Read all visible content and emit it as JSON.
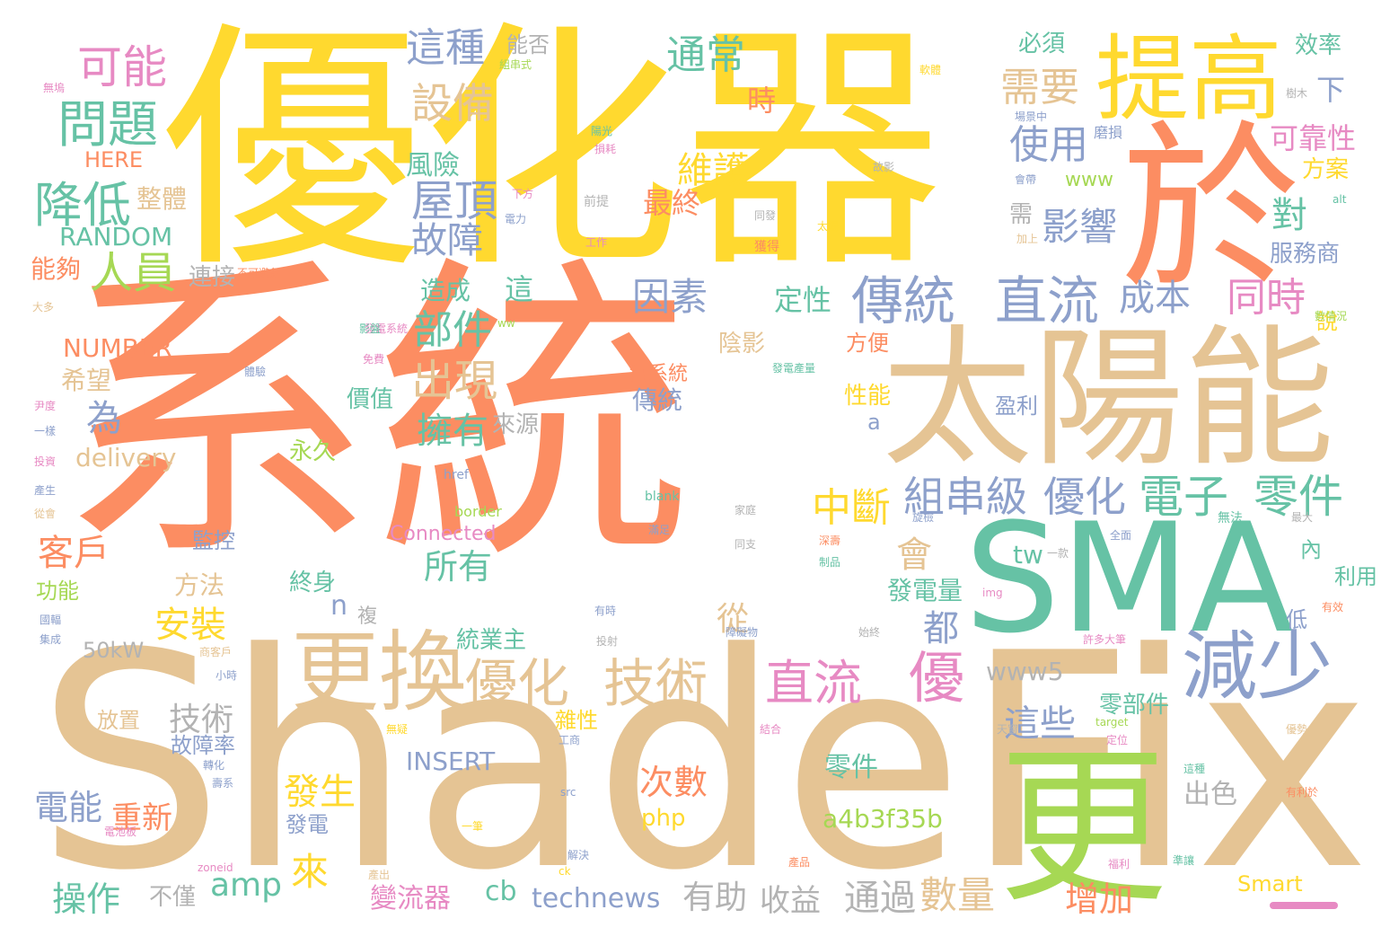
{
  "palette": {
    "orange": "#fc8d62",
    "yellow": "#ffd92f",
    "tan": "#e5c494",
    "teal": "#66c2a5",
    "blue": "#8da0cb",
    "pink": "#e78ac3",
    "green": "#a6d854",
    "gray": "#b3b3b3"
  },
  "words": [
    {
      "text": "系統",
      "color": "#fc8d62"
    },
    {
      "text": "ShadeFix",
      "color": "#e5c494"
    },
    {
      "text": "優化器",
      "color": "#ffd92f"
    },
    {
      "text": "太陽能",
      "color": "#e5c494"
    },
    {
      "text": "SMA",
      "color": "#66c2a5"
    },
    {
      "text": "提高",
      "color": "#ffd92f"
    },
    {
      "text": "於",
      "color": "#fc8d62"
    },
    {
      "text": "更",
      "color": "#a6d854"
    },
    {
      "text": "更換",
      "color": "#e5c494"
    },
    {
      "text": "減少",
      "color": "#8da0cb"
    },
    {
      "text": "傳統",
      "color": "#8da0cb"
    },
    {
      "text": "直流",
      "color": "#8da0cb"
    },
    {
      "text": "優化",
      "color": "#e5c494"
    },
    {
      "text": "技術",
      "color": "#e5c494"
    },
    {
      "text": "直流",
      "color": "#e78ac3"
    },
    {
      "text": "優",
      "color": "#e78ac3"
    },
    {
      "text": "組串級",
      "color": "#8da0cb"
    },
    {
      "text": "優化",
      "color": "#8da0cb"
    },
    {
      "text": "電子",
      "color": "#66c2a5"
    },
    {
      "text": "零件",
      "color": "#66c2a5"
    },
    {
      "text": "問題",
      "color": "#66c2a5"
    },
    {
      "text": "可能",
      "color": "#e78ac3"
    },
    {
      "text": "降低",
      "color": "#66c2a5"
    },
    {
      "text": "人員",
      "color": "#a6d854"
    },
    {
      "text": "設備",
      "color": "#e5c494"
    },
    {
      "text": "這種",
      "color": "#8da0cb"
    },
    {
      "text": "通常",
      "color": "#66c2a5"
    },
    {
      "text": "需要",
      "color": "#e5c494"
    },
    {
      "text": "使用",
      "color": "#8da0cb"
    },
    {
      "text": "維護",
      "color": "#ffd92f"
    },
    {
      "text": "屋頂",
      "color": "#8da0cb"
    },
    {
      "text": "故障",
      "color": "#8da0cb"
    },
    {
      "text": "影響",
      "color": "#8da0cb"
    },
    {
      "text": "成本",
      "color": "#8da0cb"
    },
    {
      "text": "同時",
      "color": "#e78ac3"
    },
    {
      "text": "因素",
      "color": "#8da0cb"
    },
    {
      "text": "部件",
      "color": "#66c2a5"
    },
    {
      "text": "出現",
      "color": "#e5c494"
    },
    {
      "text": "擁有",
      "color": "#66c2a5"
    },
    {
      "text": "中斷",
      "color": "#ffd92f"
    },
    {
      "text": "為",
      "color": "#8da0cb"
    },
    {
      "text": "客戶",
      "color": "#fc8d62"
    },
    {
      "text": "安裝",
      "color": "#ffd92f"
    },
    {
      "text": "技術",
      "color": "#b3b3b3"
    },
    {
      "text": "會",
      "color": "#e5c494"
    },
    {
      "text": "都",
      "color": "#8da0cb"
    },
    {
      "text": "從",
      "color": "#e5c494"
    },
    {
      "text": "來",
      "color": "#ffd92f"
    },
    {
      "text": "發生",
      "color": "#ffd92f"
    },
    {
      "text": "這些",
      "color": "#8da0cb"
    },
    {
      "text": "所有",
      "color": "#66c2a5"
    },
    {
      "text": "電能",
      "color": "#8da0cb"
    },
    {
      "text": "重新",
      "color": "#fc8d62"
    },
    {
      "text": "操作",
      "color": "#66c2a5"
    },
    {
      "text": "amp",
      "color": "#66c2a5"
    },
    {
      "text": "有助",
      "color": "#b3b3b3"
    },
    {
      "text": "收益",
      "color": "#b3b3b3"
    },
    {
      "text": "通過",
      "color": "#b3b3b3"
    },
    {
      "text": "數量",
      "color": "#e5c494"
    },
    {
      "text": "增加",
      "color": "#fc8d62"
    },
    {
      "text": "次數",
      "color": "#fc8d62"
    },
    {
      "text": "technews",
      "color": "#8da0cb"
    },
    {
      "text": "變流器",
      "color": "#e78ac3"
    },
    {
      "text": "零件",
      "color": "#66c2a5"
    },
    {
      "text": "INSERT",
      "color": "#8da0cb"
    },
    {
      "text": "a4b3f35b",
      "color": "#a6d854"
    },
    {
      "text": "出色",
      "color": "#b3b3b3"
    },
    {
      "text": "delivery",
      "color": "#e5c494"
    },
    {
      "text": "NUMBER",
      "color": "#fc8d62"
    },
    {
      "text": "RANDOM",
      "color": "#66c2a5"
    },
    {
      "text": "HERE",
      "color": "#fc8d62"
    },
    {
      "text": "www5",
      "color": "#b3b3b3"
    },
    {
      "text": "50kW",
      "color": "#b3b3b3"
    },
    {
      "text": "Connected",
      "color": "#e78ac3"
    },
    {
      "text": "Smart",
      "color": "#ffd92f"
    },
    {
      "text": "www",
      "color": "#a6d854"
    },
    {
      "text": "php",
      "color": "#ffd92f"
    },
    {
      "text": "cb",
      "color": "#66c2a5"
    },
    {
      "text": "tw",
      "color": "#66c2a5"
    },
    {
      "text": "n",
      "color": "#8da0cb"
    },
    {
      "text": "a",
      "color": "#8da0cb"
    },
    {
      "text": "風險",
      "color": "#66c2a5"
    },
    {
      "text": "整體",
      "color": "#e5c494"
    },
    {
      "text": "能夠",
      "color": "#fc8d62"
    },
    {
      "text": "連接",
      "color": "#b3b3b3"
    },
    {
      "text": "造成",
      "color": "#66c2a5"
    },
    {
      "text": "這",
      "color": "#66c2a5"
    },
    {
      "text": "最終",
      "color": "#fc8d62"
    },
    {
      "text": "定性",
      "color": "#66c2a5"
    },
    {
      "text": "時",
      "color": "#fc8d62"
    },
    {
      "text": "對",
      "color": "#66c2a5"
    },
    {
      "text": "需",
      "color": "#b3b3b3"
    },
    {
      "text": "必須",
      "color": "#66c2a5"
    },
    {
      "text": "能否",
      "color": "#b3b3b3"
    },
    {
      "text": "效率",
      "color": "#66c2a5"
    },
    {
      "text": "下",
      "color": "#8da0cb"
    },
    {
      "text": "可靠性",
      "color": "#e78ac3"
    },
    {
      "text": "方案",
      "color": "#ffd92f"
    },
    {
      "text": "服務商",
      "color": "#8da0cb"
    },
    {
      "text": "說",
      "color": "#ffd92f"
    },
    {
      "text": "希望",
      "color": "#e5c494"
    },
    {
      "text": "價值",
      "color": "#66c2a5"
    },
    {
      "text": "傳統",
      "color": "#8da0cb"
    },
    {
      "text": "當系統",
      "color": "#fc8d62"
    },
    {
      "text": "方便",
      "color": "#fc8d62"
    },
    {
      "text": "性能",
      "color": "#ffd92f"
    },
    {
      "text": "陰影",
      "color": "#e5c494"
    },
    {
      "text": "來源",
      "color": "#b3b3b3"
    },
    {
      "text": "盈利",
      "color": "#8da0cb"
    },
    {
      "text": "永久",
      "color": "#a6d854"
    },
    {
      "text": "終身",
      "color": "#66c2a5"
    },
    {
      "text": "方法",
      "color": "#e5c494"
    },
    {
      "text": "監控",
      "color": "#8da0cb"
    },
    {
      "text": "功能",
      "color": "#a6d854"
    },
    {
      "text": "故障率",
      "color": "#8da0cb"
    },
    {
      "text": "放置",
      "color": "#e5c494"
    },
    {
      "text": "統業主",
      "color": "#66c2a5"
    },
    {
      "text": "雜性",
      "color": "#ffd92f"
    },
    {
      "text": "發電量",
      "color": "#66c2a5"
    },
    {
      "text": "零部件",
      "color": "#66c2a5"
    },
    {
      "text": "發電",
      "color": "#8da0cb"
    },
    {
      "text": "內",
      "color": "#66c2a5"
    },
    {
      "text": "利用",
      "color": "#66c2a5"
    },
    {
      "text": "低",
      "color": "#8da0cb"
    },
    {
      "text": "複",
      "color": "#b3b3b3"
    },
    {
      "text": "不僅",
      "color": "#b3b3b3"
    },
    {
      "text": "無塢",
      "color": "#e78ac3"
    },
    {
      "text": "組串式",
      "color": "#a6d854"
    },
    {
      "text": "軟體",
      "color": "#ffd92f"
    },
    {
      "text": "樹木",
      "color": "#b3b3b3"
    },
    {
      "text": "場景中",
      "color": "#8da0cb"
    },
    {
      "text": "陽光",
      "color": "#66c2a5"
    },
    {
      "text": "損耗",
      "color": "#e78ac3"
    },
    {
      "text": "磨損",
      "color": "#8da0cb"
    },
    {
      "text": "故影",
      "color": "#b3b3b3"
    },
    {
      "text": "會帶",
      "color": "#8da0cb"
    },
    {
      "text": "alt",
      "color": "#66c2a5"
    },
    {
      "text": "下方",
      "color": "#e78ac3"
    },
    {
      "text": "電力",
      "color": "#8da0cb"
    },
    {
      "text": "前提",
      "color": "#b3b3b3"
    },
    {
      "text": "同發",
      "color": "#b3b3b3"
    },
    {
      "text": "太陽",
      "color": "#ffd92f"
    },
    {
      "text": "獲得",
      "color": "#fc8d62"
    },
    {
      "text": "工作",
      "color": "#e78ac3"
    },
    {
      "text": "加上",
      "color": "#e5c494"
    },
    {
      "text": "不可避免",
      "color": "#fc8d62"
    },
    {
      "text": "數情況",
      "color": "#a6d854"
    },
    {
      "text": "大多",
      "color": "#e5c494"
    },
    {
      "text": "ww",
      "color": "#a6d854"
    },
    {
      "text": "發電系統",
      "color": "#e78ac3"
    },
    {
      "text": "發電產量",
      "color": "#66c2a5"
    },
    {
      "text": "免費",
      "color": "#e78ac3"
    },
    {
      "text": "體驗",
      "color": "#8da0cb"
    },
    {
      "text": "影盤",
      "color": "#66c2a5"
    },
    {
      "text": "尹度",
      "color": "#e78ac3"
    },
    {
      "text": "一樣",
      "color": "#8da0cb"
    },
    {
      "text": "投資",
      "color": "#e78ac3"
    },
    {
      "text": "產生",
      "color": "#8da0cb"
    },
    {
      "text": "從會",
      "color": "#e5c494"
    },
    {
      "text": "href",
      "color": "#8da0cb"
    },
    {
      "text": "blank",
      "color": "#66c2a5"
    },
    {
      "text": "border",
      "color": "#a6d854"
    },
    {
      "text": "家庭",
      "color": "#b3b3b3"
    },
    {
      "text": "旋檢",
      "color": "#8da0cb"
    },
    {
      "text": "無法",
      "color": "#66c2a5"
    },
    {
      "text": "最大",
      "color": "#b3b3b3"
    },
    {
      "text": "滿足",
      "color": "#8da0cb"
    },
    {
      "text": "同支",
      "color": "#b3b3b3"
    },
    {
      "text": "一款",
      "color": "#b3b3b3"
    },
    {
      "text": "深壽",
      "color": "#fc8d62"
    },
    {
      "text": "全面",
      "color": "#8da0cb"
    },
    {
      "text": "制品",
      "color": "#66c2a5"
    },
    {
      "text": "img",
      "color": "#e78ac3"
    },
    {
      "text": "有時",
      "color": "#8da0cb"
    },
    {
      "text": "有效",
      "color": "#fc8d62"
    },
    {
      "text": "國輻",
      "color": "#8da0cb"
    },
    {
      "text": "集成",
      "color": "#8da0cb"
    },
    {
      "text": "商客戶",
      "color": "#e5c494"
    },
    {
      "text": "小時",
      "color": "#8da0cb"
    },
    {
      "text": "投射",
      "color": "#b3b3b3"
    },
    {
      "text": "障礙物",
      "color": "#8da0cb"
    },
    {
      "text": "始終",
      "color": "#b3b3b3"
    },
    {
      "text": "許多大筆",
      "color": "#e78ac3"
    },
    {
      "text": "無疑",
      "color": "#ffd92f"
    },
    {
      "text": "轉化",
      "color": "#8da0cb"
    },
    {
      "text": "工商",
      "color": "#8da0cb"
    },
    {
      "text": "結合",
      "color": "#e78ac3"
    },
    {
      "text": "天窗",
      "color": "#b3b3b3"
    },
    {
      "text": "target",
      "color": "#a6d854"
    },
    {
      "text": "優勢",
      "color": "#e5c494"
    },
    {
      "text": "定位",
      "color": "#e78ac3"
    },
    {
      "text": "壽系",
      "color": "#8da0cb"
    },
    {
      "text": "src",
      "color": "#8da0cb"
    },
    {
      "text": "這種",
      "color": "#66c2a5"
    },
    {
      "text": "有利於",
      "color": "#fc8d62"
    },
    {
      "text": "電池板",
      "color": "#e78ac3"
    },
    {
      "text": "一筆",
      "color": "#ffd92f"
    },
    {
      "text": "zoneid",
      "color": "#e78ac3"
    },
    {
      "text": "解決",
      "color": "#8da0cb"
    },
    {
      "text": "產品",
      "color": "#fc8d62"
    },
    {
      "text": "ck",
      "color": "#ffd92f"
    },
    {
      "text": "福利",
      "color": "#e78ac3"
    },
    {
      "text": "準讓",
      "color": "#66c2a5"
    },
    {
      "text": "產出",
      "color": "#e5c494"
    }
  ]
}
